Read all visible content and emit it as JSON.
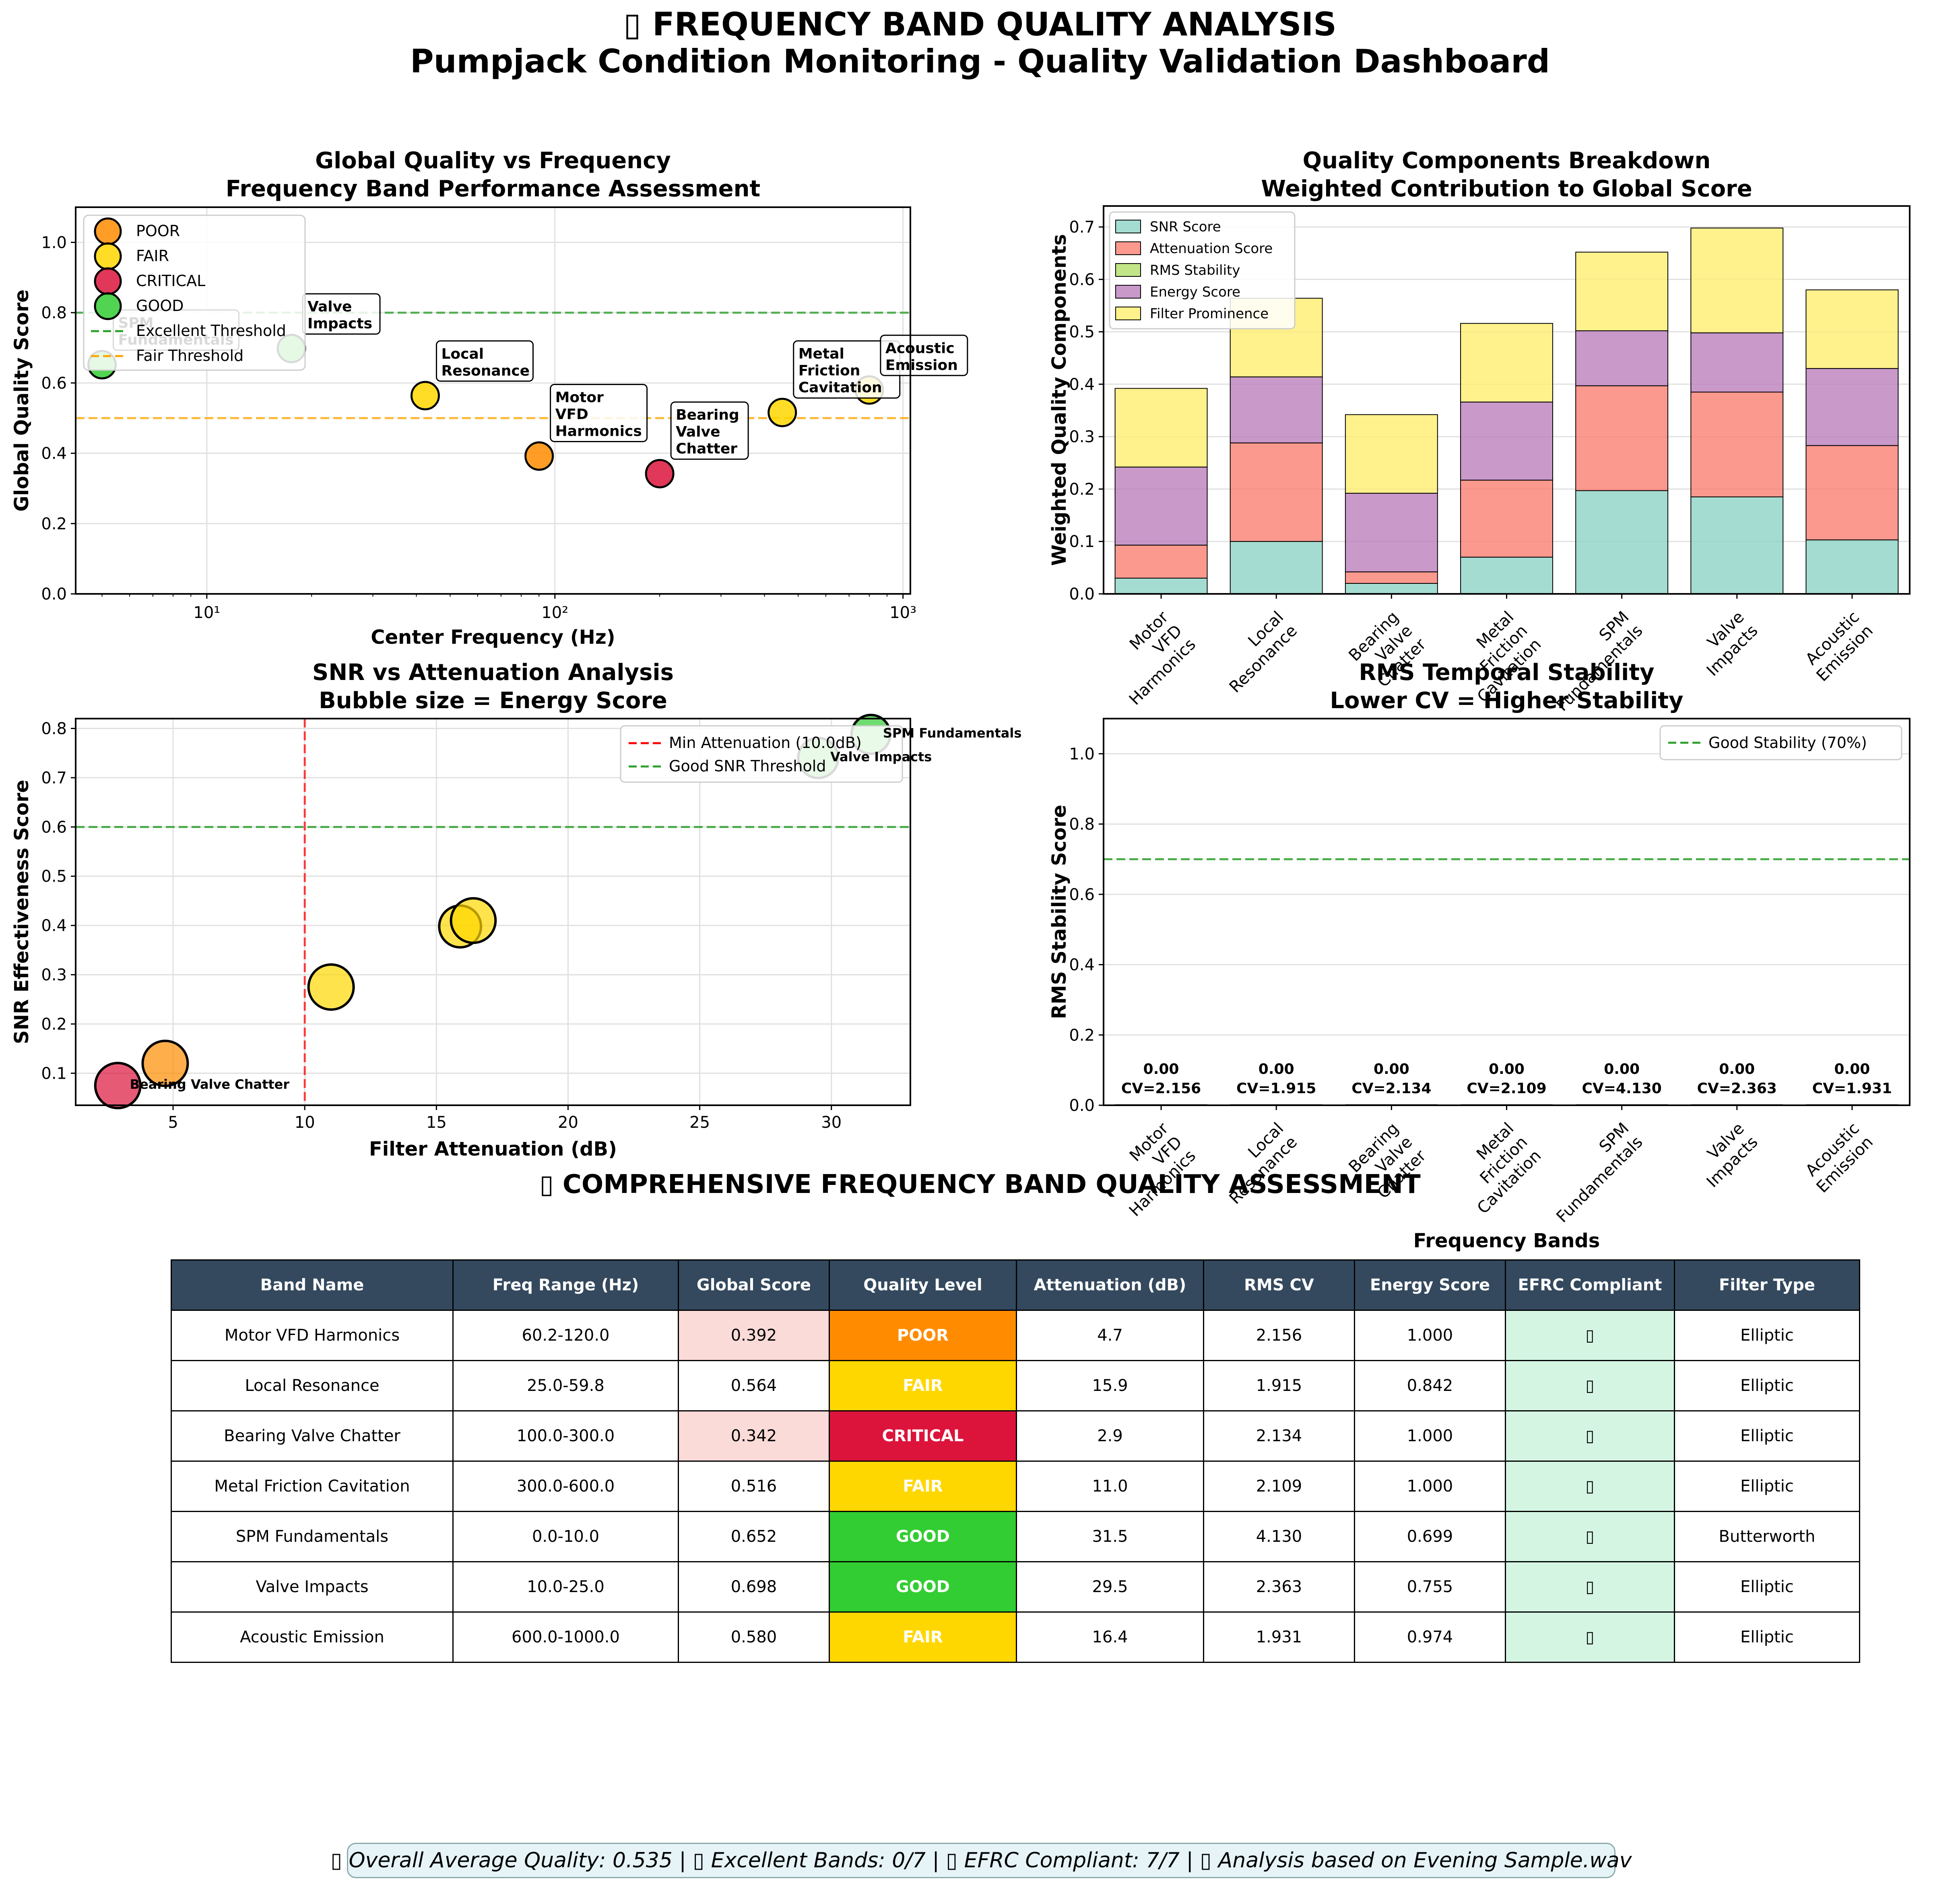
{
  "title": {
    "line1": "▯ FREQUENCY BAND QUALITY ANALYSIS",
    "line2": "Pumpjack Condition Monitoring - Quality Validation Dashboard"
  },
  "colors": {
    "POOR": "#ff8c00",
    "FAIR": "#ffd700",
    "CRITICAL": "#dc143c",
    "GOOD": "#32cd32",
    "header": "#34495e",
    "compliant": "#d5f5e3",
    "low_score": "#fadbd8"
  },
  "chart_data": [
    {
      "type": "scatter",
      "title": "Global Quality vs Frequency\nFrequency Band Performance Assessment",
      "xlabel": "Center Frequency (Hz)",
      "ylabel": "Global Quality Score",
      "xscale": "log",
      "xlim": [
        4.2,
        1050
      ],
      "ylim": [
        0,
        1.1
      ],
      "yticks": [
        "0.0",
        "0.2",
        "0.4",
        "0.6",
        "0.8",
        "1.0"
      ],
      "xticks": [
        "10¹",
        "10²",
        "10³"
      ],
      "grid": true,
      "legend_position": "top-left",
      "legend": [
        "POOR",
        "FAIR",
        "CRITICAL",
        "GOOD",
        "Excellent Threshold",
        "Fair Threshold"
      ],
      "thresholds": [
        {
          "name": "Excellent Threshold",
          "y": 0.8,
          "color": "#2ca02c"
        },
        {
          "name": "Fair Threshold",
          "y": 0.5,
          "color": "#ffa500"
        }
      ],
      "points": [
        {
          "label": "Motor\nVFD\nHarmonics",
          "x": 90.1,
          "y": 0.392,
          "level": "POOR"
        },
        {
          "label": "Local\nResonance",
          "x": 42.4,
          "y": 0.564,
          "level": "FAIR"
        },
        {
          "label": "Bearing\nValve\nChatter",
          "x": 200,
          "y": 0.342,
          "level": "CRITICAL"
        },
        {
          "label": "Metal\nFriction\nCavitation",
          "x": 450,
          "y": 0.516,
          "level": "FAIR"
        },
        {
          "label": "SPM\nFundamentals",
          "x": 5,
          "y": 0.652,
          "level": "GOOD"
        },
        {
          "label": "Valve\nImpacts",
          "x": 17.5,
          "y": 0.698,
          "level": "GOOD"
        },
        {
          "label": "Acoustic\nEmission",
          "x": 800,
          "y": 0.58,
          "level": "FAIR"
        }
      ]
    },
    {
      "type": "bar",
      "stacked": true,
      "title": "Quality Components Breakdown\nWeighted Contribution to Global Score",
      "ylabel": "Weighted Quality Components",
      "ylim": [
        0,
        0.74
      ],
      "yticks": [
        "0.0",
        "0.1",
        "0.2",
        "0.3",
        "0.4",
        "0.5",
        "0.6",
        "0.7"
      ],
      "categories": [
        "Motor\nVFD\nHarmonics",
        "Local\nResonance",
        "Bearing\nValve\nChatter",
        "Metal\nFriction\nCavitation",
        "SPM\nFundamentals",
        "Valve\nImpacts",
        "Acoustic\nEmission"
      ],
      "legend_position": "top-left",
      "series": [
        {
          "name": "SNR Score",
          "color": "#8dd3c7",
          "values": [
            0.03,
            0.1,
            0.02,
            0.07,
            0.197,
            0.185,
            0.103
          ]
        },
        {
          "name": "Attenuation Score",
          "color": "#fb8072",
          "values": [
            0.063,
            0.188,
            0.022,
            0.147,
            0.2,
            0.2,
            0.18
          ]
        },
        {
          "name": "RMS Stability",
          "color": "#b3de69",
          "values": [
            0,
            0,
            0,
            0,
            0,
            0,
            0
          ]
        },
        {
          "name": "Energy Score",
          "color": "#bc80bd",
          "values": [
            0.149,
            0.126,
            0.15,
            0.149,
            0.105,
            0.113,
            0.147
          ]
        },
        {
          "name": "Filter Prominence",
          "color": "#ffed6f",
          "values": [
            0.15,
            0.15,
            0.15,
            0.15,
            0.15,
            0.2,
            0.15
          ]
        }
      ]
    },
    {
      "type": "scatter",
      "title": "SNR vs Attenuation Analysis\nBubble size = Energy Score",
      "xlabel": "Filter Attenuation (dB)",
      "ylabel": "SNR Effectiveness Score",
      "xlim": [
        1.3,
        33
      ],
      "ylim": [
        0.035,
        0.82
      ],
      "xticks": [
        "5",
        "10",
        "15",
        "20",
        "25",
        "30"
      ],
      "yticks": [
        "0.1",
        "0.2",
        "0.3",
        "0.4",
        "0.5",
        "0.6",
        "0.7",
        "0.8"
      ],
      "grid": true,
      "legend_position": "top-right",
      "legend": [
        "Min Attenuation (10.0dB)",
        "Good SNR Threshold"
      ],
      "vline": {
        "x": 10,
        "color": "#ff0000"
      },
      "hline": {
        "y": 0.6,
        "color": "#2ca02c"
      },
      "points": [
        {
          "x": 4.7,
          "y": 0.12,
          "size": 1.0,
          "level": "POOR",
          "label": ""
        },
        {
          "x": 15.9,
          "y": 0.398,
          "size": 0.842,
          "level": "FAIR",
          "label": ""
        },
        {
          "x": 2.9,
          "y": 0.075,
          "size": 1.0,
          "level": "CRITICAL",
          "label": "Bearing Valve Chatter"
        },
        {
          "x": 11.0,
          "y": 0.275,
          "size": 1.0,
          "level": "FAIR",
          "label": ""
        },
        {
          "x": 31.5,
          "y": 0.788,
          "size": 0.699,
          "level": "GOOD",
          "label": "SPM Fundamentals"
        },
        {
          "x": 29.5,
          "y": 0.74,
          "size": 0.755,
          "level": "GOOD",
          "label": "Valve Impacts"
        },
        {
          "x": 16.4,
          "y": 0.41,
          "size": 0.974,
          "level": "FAIR",
          "label": ""
        }
      ]
    },
    {
      "type": "bar",
      "title": "RMS Temporal Stability\nLower CV = Higher Stability",
      "xlabel": "Frequency Bands",
      "ylabel": "RMS Stability Score",
      "ylim": [
        0,
        1.1
      ],
      "yticks": [
        "0.0",
        "0.2",
        "0.4",
        "0.6",
        "0.8",
        "1.0"
      ],
      "categories": [
        "Motor\nVFD\nHarmonics",
        "Local\nResonance",
        "Bearing\nValve\nChatter",
        "Metal\nFriction\nCavitation",
        "SPM\nFundamentals",
        "Valve\nImpacts",
        "Acoustic\nEmission"
      ],
      "values": [
        0,
        0,
        0,
        0,
        0,
        0,
        0
      ],
      "value_labels": [
        "0.00",
        "0.00",
        "0.00",
        "0.00",
        "0.00",
        "0.00",
        "0.00"
      ],
      "cv_labels": [
        "CV=2.156",
        "CV=1.915",
        "CV=2.134",
        "CV=2.109",
        "CV=4.130",
        "CV=2.363",
        "CV=1.931"
      ],
      "legend_position": "top-right",
      "legend": [
        "Good Stability (70%)"
      ],
      "hline": {
        "y": 0.7,
        "color": "#2ca02c"
      }
    }
  ],
  "table": {
    "title": "▯ COMPREHENSIVE FREQUENCY BAND QUALITY ASSESSMENT",
    "headers": [
      "Band Name",
      "Freq Range (Hz)",
      "Global Score",
      "Quality Level",
      "Attenuation (dB)",
      "RMS CV",
      "Energy Score",
      "EFRC Compliant",
      "Filter Type"
    ],
    "rows": [
      {
        "band": "Motor VFD Harmonics",
        "range": "60.2-120.0",
        "score": "0.392",
        "level": "POOR",
        "atten": "4.7",
        "cv": "2.156",
        "energy": "1.000",
        "efrc": "▯",
        "filter": "Elliptic",
        "low": true
      },
      {
        "band": "Local Resonance",
        "range": "25.0-59.8",
        "score": "0.564",
        "level": "FAIR",
        "atten": "15.9",
        "cv": "1.915",
        "energy": "0.842",
        "efrc": "▯",
        "filter": "Elliptic",
        "low": false
      },
      {
        "band": "Bearing Valve Chatter",
        "range": "100.0-300.0",
        "score": "0.342",
        "level": "CRITICAL",
        "atten": "2.9",
        "cv": "2.134",
        "energy": "1.000",
        "efrc": "▯",
        "filter": "Elliptic",
        "low": true
      },
      {
        "band": "Metal Friction Cavitation",
        "range": "300.0-600.0",
        "score": "0.516",
        "level": "FAIR",
        "atten": "11.0",
        "cv": "2.109",
        "energy": "1.000",
        "efrc": "▯",
        "filter": "Elliptic",
        "low": false
      },
      {
        "band": "SPM Fundamentals",
        "range": "0.0-10.0",
        "score": "0.652",
        "level": "GOOD",
        "atten": "31.5",
        "cv": "4.130",
        "energy": "0.699",
        "efrc": "▯",
        "filter": "Butterworth",
        "low": false
      },
      {
        "band": "Valve Impacts",
        "range": "10.0-25.0",
        "score": "0.698",
        "level": "GOOD",
        "atten": "29.5",
        "cv": "2.363",
        "energy": "0.755",
        "efrc": "▯",
        "filter": "Elliptic",
        "low": false
      },
      {
        "band": "Acoustic Emission",
        "range": "600.0-1000.0",
        "score": "0.580",
        "level": "FAIR",
        "atten": "16.4",
        "cv": "1.931",
        "energy": "0.974",
        "efrc": "▯",
        "filter": "Elliptic",
        "low": false
      }
    ]
  },
  "footer": "▯ Overall Average Quality: 0.535 | ▯ Excellent Bands: 0/7 | ▯ EFRC Compliant: 7/7 | ▯ Analysis based on Evening Sample.wav"
}
